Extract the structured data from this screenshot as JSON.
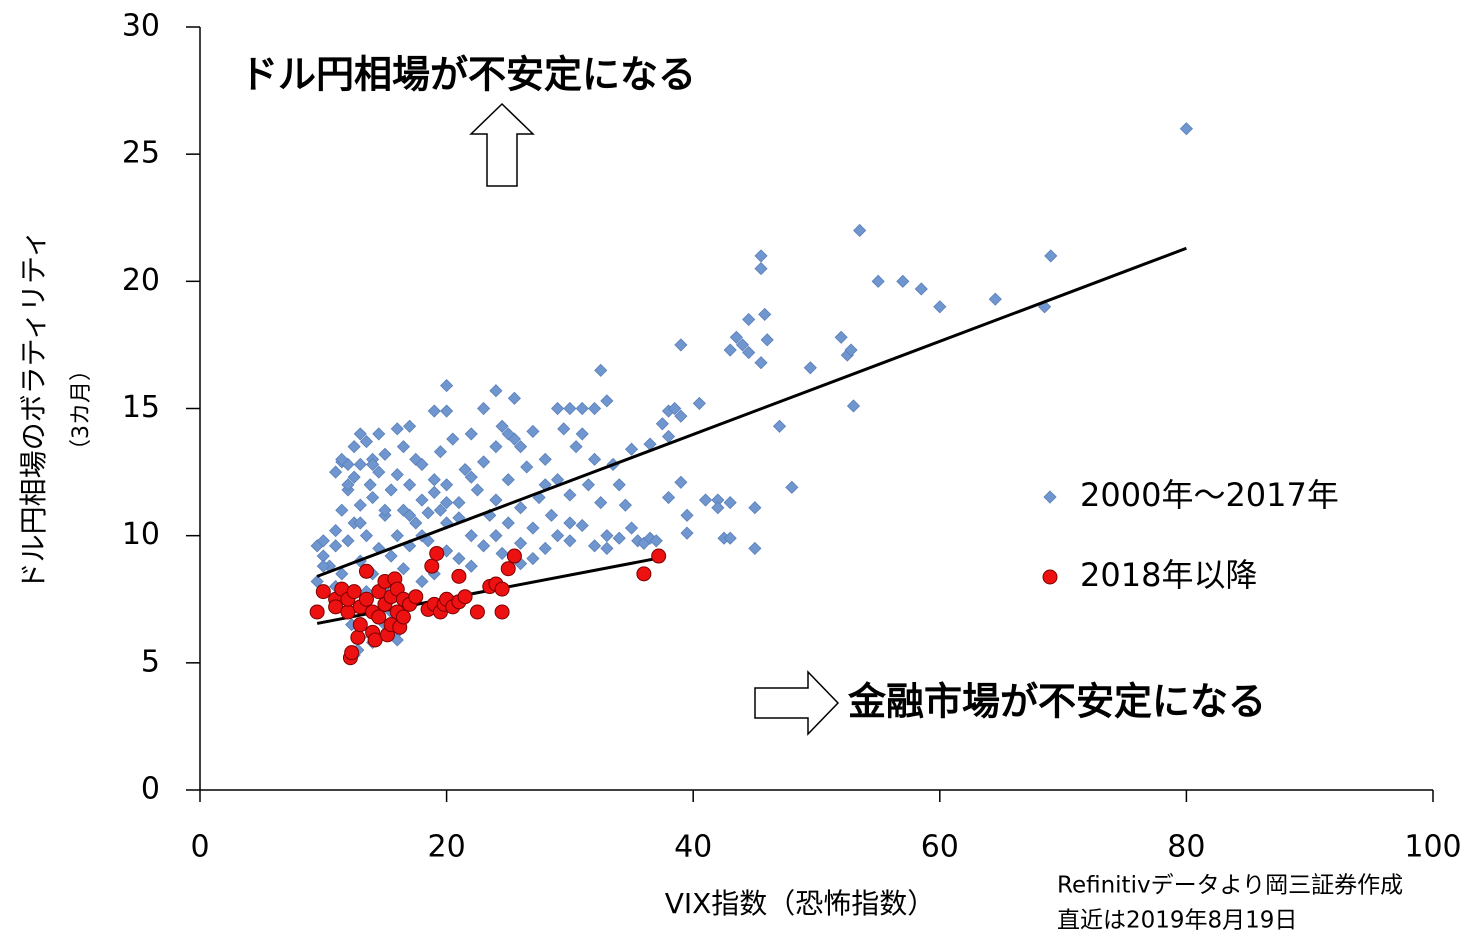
{
  "chart_data": {
    "type": "scatter",
    "x_label": "VIX指数（恐怖指数）",
    "y_label": [
      "ドル円相場のボラティリティ",
      "（3カ月）"
    ],
    "annotations": [
      "ドル円相場が不安定になる",
      "金融市場が不安定になる"
    ],
    "source": [
      "Refinitivデータより岡三証券作成",
      "直近は2019年8月19日"
    ],
    "xlim": [
      0,
      100
    ],
    "xticks": [
      0,
      20,
      40,
      60,
      80,
      100
    ],
    "ylim": [
      0,
      30
    ],
    "yticks": [
      0,
      5,
      10,
      15,
      20,
      25,
      30
    ],
    "legend_position": "right",
    "series": [
      {
        "name": "2000年～2017年",
        "color": "#7096d0",
        "marker": "diamond",
        "x": [
          80,
          53.5,
          45.5,
          45.5,
          69,
          55,
          57,
          58.5,
          60,
          64.5,
          68.5,
          45.8,
          44.5,
          43,
          43.5,
          44,
          44.5,
          39,
          52,
          52.5,
          52.8,
          46,
          45.5,
          49.5,
          53,
          47,
          40.5,
          38,
          38.5,
          39,
          37.5,
          38,
          36.5,
          35,
          39,
          48,
          42,
          43,
          41,
          42,
          45,
          39.5,
          38,
          42.5,
          43,
          39.5,
          45,
          32.5,
          24,
          20,
          25.5,
          33,
          29,
          30,
          31,
          32,
          20,
          19,
          17,
          14.5,
          13.5,
          12.5,
          11.5,
          11,
          12,
          10,
          10.5,
          11,
          11,
          11.5,
          11.5,
          12,
          12,
          12,
          12.3,
          12.5,
          12.5,
          12.8,
          13,
          13,
          13,
          13.5,
          13.5,
          13.8,
          14,
          14,
          14,
          14.5,
          14.5,
          14.5,
          15,
          15,
          15,
          15.5,
          15.5,
          15.5,
          16,
          16,
          16,
          16.5,
          16.5,
          16.5,
          17,
          17,
          17,
          17.5,
          17.5,
          18,
          18,
          18,
          18.5,
          18.5,
          19,
          19,
          19.5,
          19.5,
          20,
          20,
          20,
          20.5,
          21,
          21,
          21.5,
          22,
          22,
          22.5,
          23,
          23,
          23.5,
          24,
          24,
          24.5,
          24.5,
          25,
          25,
          25.5,
          26,
          26,
          26.5,
          27,
          27,
          27.5,
          28,
          28,
          28.5,
          29,
          29.5,
          30,
          30,
          30.5,
          31,
          31.5,
          32,
          32,
          32.5,
          33,
          33.5,
          34,
          34.5,
          35,
          35.5,
          36,
          36.5,
          37,
          26,
          27,
          22,
          13,
          12.5,
          14,
          15,
          16,
          11,
          10,
          9.5,
          9.5,
          10,
          11,
          13,
          16,
          23,
          18,
          21,
          19,
          15,
          13,
          17,
          24,
          28,
          25,
          20,
          22,
          14,
          12,
          11.5,
          30,
          34,
          31,
          26,
          29,
          33
        ],
        "values": [
          26,
          22,
          21,
          20.5,
          21,
          20,
          20,
          19.7,
          19,
          19.3,
          19,
          18.7,
          18.5,
          17.3,
          17.8,
          17.5,
          17.2,
          17.5,
          17.8,
          17.1,
          17.3,
          17.7,
          16.8,
          16.6,
          15.1,
          14.3,
          15.2,
          14.9,
          15,
          14.7,
          14.4,
          13.9,
          13.6,
          13.4,
          12.1,
          11.9,
          11.4,
          11.3,
          11.4,
          11.1,
          11.1,
          10.8,
          11.5,
          9.9,
          9.9,
          10.1,
          9.5,
          16.5,
          15.7,
          15.9,
          15.4,
          15.3,
          15,
          15,
          15,
          15,
          14.9,
          14.9,
          14.3,
          14,
          13.7,
          13.5,
          12.9,
          12.5,
          12.8,
          9.2,
          8.8,
          9.6,
          10.2,
          11,
          8.5,
          9.8,
          11.8,
          7.5,
          6.5,
          10.5,
          12.3,
          5.5,
          9,
          11.2,
          12.8,
          7.8,
          10,
          12,
          8.5,
          11.5,
          13,
          6.8,
          9.5,
          12.5,
          10.8,
          8,
          13.2,
          7,
          11.8,
          9.2,
          10,
          12.4,
          6.2,
          8.7,
          11,
          13.5,
          9.6,
          12,
          7.5,
          10.5,
          13,
          8.2,
          11.4,
          12.8,
          9.8,
          10.9,
          12.2,
          8.5,
          11,
          13.3,
          9.4,
          12,
          10.5,
          13.8,
          11.3,
          9.1,
          12.6,
          10,
          14,
          11.8,
          9.6,
          12.9,
          10.8,
          13.5,
          11.4,
          9.3,
          14.3,
          12.2,
          10.5,
          13.8,
          11.1,
          9.7,
          12.7,
          10.3,
          14.1,
          11.5,
          9.5,
          13,
          10.8,
          12.2,
          14.2,
          9.8,
          11.6,
          13.5,
          10.4,
          12,
          9.6,
          13,
          11.3,
          10,
          12.8,
          9.9,
          11.2,
          10.3,
          9.8,
          9.7,
          9.9,
          9.8,
          8.9,
          9.1,
          8.8,
          6,
          5.3,
          5.8,
          6.5,
          5.9,
          8,
          8.8,
          9.6,
          8.2,
          9.8,
          7.2,
          14,
          14.2,
          15,
          10,
          10.7,
          11.7,
          11,
          10.5,
          10.8,
          10,
          12,
          14,
          11.3,
          12.3,
          12.8,
          12,
          13,
          10.5,
          12,
          14,
          13.5,
          10,
          9.5
        ]
      },
      {
        "name": "2018年以降",
        "color": "#ee1111",
        "marker": "circle",
        "x": [
          9.5,
          10,
          11,
          11,
          11.5,
          12,
          12,
          12.2,
          12.3,
          12.5,
          12.8,
          13,
          13,
          13.5,
          13.5,
          14,
          14,
          14.2,
          14.5,
          14.5,
          15,
          15,
          15.2,
          15.5,
          15.5,
          15.8,
          16,
          16,
          16.2,
          16.5,
          16.5,
          17,
          17.5,
          18.8,
          18.5,
          19,
          19.2,
          19.5,
          19.8,
          20,
          20.5,
          21,
          21,
          21.5,
          22.5,
          23.5,
          24,
          24.5,
          24.5,
          25,
          25.5,
          36,
          37.2
        ],
        "values": [
          7,
          7.8,
          7.5,
          7.2,
          7.9,
          7,
          7.5,
          5.2,
          5.4,
          7.8,
          6,
          6.5,
          7.2,
          8.6,
          7.5,
          7,
          6.2,
          5.9,
          7.8,
          6.8,
          7.3,
          8.2,
          6.1,
          7.6,
          6.5,
          8.3,
          7,
          7.9,
          6.4,
          7.5,
          6.8,
          7.3,
          7.6,
          8.8,
          7.1,
          7.3,
          9.3,
          7,
          7.3,
          7.5,
          7.2,
          8.4,
          7.4,
          7.6,
          7,
          8,
          8.1,
          7.9,
          7,
          8.7,
          9.2,
          8.5,
          9.2
        ]
      }
    ],
    "trendlines": [
      {
        "color": "#000000",
        "x": [
          9.5,
          80
        ],
        "values": [
          8.4,
          21.3
        ]
      },
      {
        "color": "#000000",
        "x": [
          9.5,
          37
        ],
        "values": [
          6.55,
          9.1
        ]
      }
    ]
  }
}
